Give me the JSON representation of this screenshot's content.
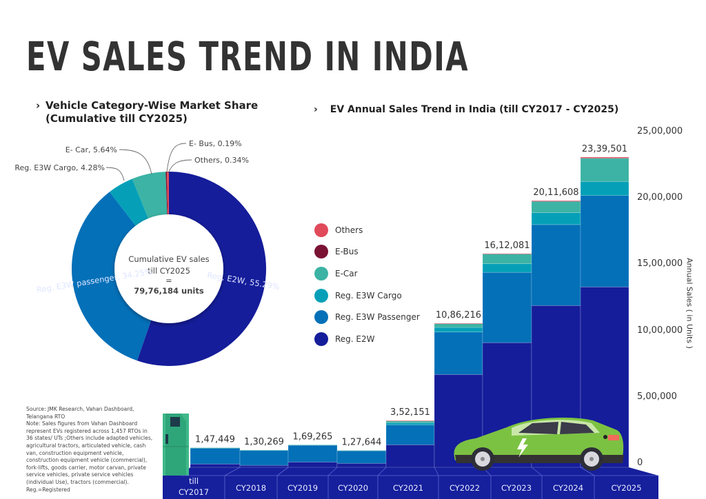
{
  "page": {
    "title": "EV SALES TREND IN INDIA",
    "pie_subtitle_line1": "Vehicle Category-Wise Market Share",
    "pie_subtitle_line2": "(Cumulative till CY2025)",
    "bar_subtitle": "EV Annual Sales Trend in India (till CY2017 - CY2025)",
    "chevron_icon": "chevron-right-icon",
    "source_note": "Source: JMK Research, Vahan Dashboard, Telangana RTO\nNote: Sales figures from Vahan Dashboard represent EVs registered across 1,457 RTOs in 36 states/ UTs ;Others include adapted vehicles, agricultural tractors, articulated vehicle, cash van, construction equipment vehicle, construction equipment vehicle (commercial), fork-lifts, goods carrier, motor carvan, private service vehicles, private service vehicles (individual Use), tractors (commercial). Reg.=Registered",
    "decorations": [
      "ev-charging-station-icon",
      "electric-car-icon"
    ]
  },
  "colors": {
    "e2w": "#151d9a",
    "e3w_passenger": "#0470b8",
    "e3w_cargo": "#05a0b8",
    "ecar": "#3cb3a4",
    "ebus": "#7a1233",
    "others": "#e04a5a",
    "platform": "#161f9c",
    "platform_line": "#5f69d0",
    "title": "#333333"
  },
  "chart_data": [
    {
      "type": "pie",
      "variant": "donut",
      "title": "Vehicle Category-Wise Market Share (Cumulative till CY2025)",
      "center_text": [
        "Cumulative EV sales",
        "till CY2025",
        "=",
        "79,76,184 units"
      ],
      "start_angle": "12 o'clock",
      "direction": "clockwise",
      "slices": [
        {
          "label": "Reg. E2W",
          "value": 55.29,
          "display": "Reg. E2W, 55.29%",
          "color_key": "e2w",
          "label_position": "inside"
        },
        {
          "label": "Reg. E3W passenger",
          "value": 34.25,
          "display": "Reg. E3W passenger, 34.25%",
          "color_key": "e3w_passenger",
          "label_position": "inside"
        },
        {
          "label": "Reg. E3W Cargo",
          "value": 4.28,
          "display": "Reg. E3W Cargo, 4.28%",
          "color_key": "e3w_cargo",
          "label_position": "outside"
        },
        {
          "label": "E- Car",
          "value": 5.64,
          "display": "E- Car, 5.64%",
          "color_key": "ecar",
          "label_position": "outside"
        },
        {
          "label": "E- Bus",
          "value": 0.19,
          "display": "E- Bus, 0.19%",
          "color_key": "ebus",
          "label_position": "outside"
        },
        {
          "label": "Others",
          "value": 0.34,
          "display": "Others, 0.34%",
          "color_key": "others",
          "label_position": "outside"
        }
      ]
    },
    {
      "type": "bar",
      "stacked": true,
      "title": "EV Annual Sales Trend in India (till CY2017 - CY2025)",
      "xlabel": "",
      "ylabel": "Annual Sales ( in Units )",
      "ylim": [
        0,
        2500000
      ],
      "yticks": [
        0,
        500000,
        1000000,
        1500000,
        2000000,
        2500000
      ],
      "ytick_labels": [
        "0",
        "5,00,000",
        "10,00,000",
        "15,00,000",
        "20,00,000",
        "25,00,000"
      ],
      "grid": false,
      "legend_position": "left-middle",
      "categories": [
        "till CY2017",
        "CY2018",
        "CY2019",
        "CY2020",
        "CY2021",
        "CY2022",
        "CY2023",
        "CY2024",
        "CY2025"
      ],
      "totals": [
        147449,
        130269,
        169265,
        127644,
        352151,
        1086216,
        1612081,
        2011608,
        2339501
      ],
      "total_labels": [
        "1,47,449",
        "1,30,269",
        "1,69,265",
        "1,27,644",
        "3,52,151",
        "10,86,216",
        "16,12,081",
        "20,11,608",
        "23,39,501"
      ],
      "series": [
        {
          "name": "Reg. E2W",
          "color_key": "e2w",
          "values": [
            25000,
            15000,
            40000,
            30000,
            170000,
            700000,
            940000,
            1220000,
            1360000
          ]
        },
        {
          "name": "Reg. E3W Passenger",
          "color_key": "e3w_passenger",
          "values": [
            122000,
            114000,
            128000,
            96000,
            150000,
            320000,
            530000,
            610000,
            690000
          ]
        },
        {
          "name": "Reg. E3W Cargo",
          "color_key": "e3w_cargo",
          "values": [
            0,
            0,
            0,
            0,
            15000,
            35000,
            65000,
            90000,
            105000
          ]
        },
        {
          "name": "E-Car",
          "color_key": "ecar",
          "values": [
            449,
            1269,
            1265,
            1644,
            16151,
            30216,
            75081,
            85608,
            174501
          ]
        },
        {
          "name": "E-Bus",
          "color_key": "ebus",
          "values": [
            0,
            0,
            0,
            0,
            0,
            0,
            0,
            3000,
            4000
          ]
        },
        {
          "name": "Others",
          "color_key": "others",
          "values": [
            0,
            0,
            0,
            0,
            1000,
            1000,
            2000,
            3000,
            6000
          ]
        }
      ],
      "legend": [
        "Others",
        "E-Bus",
        "E-Car",
        "Reg. E3W Cargo",
        "Reg. E3W Passenger",
        "Reg. E2W"
      ],
      "legend_color_keys": [
        "others",
        "ebus",
        "ecar",
        "e3w_cargo",
        "e3w_passenger",
        "e2w"
      ]
    }
  ]
}
